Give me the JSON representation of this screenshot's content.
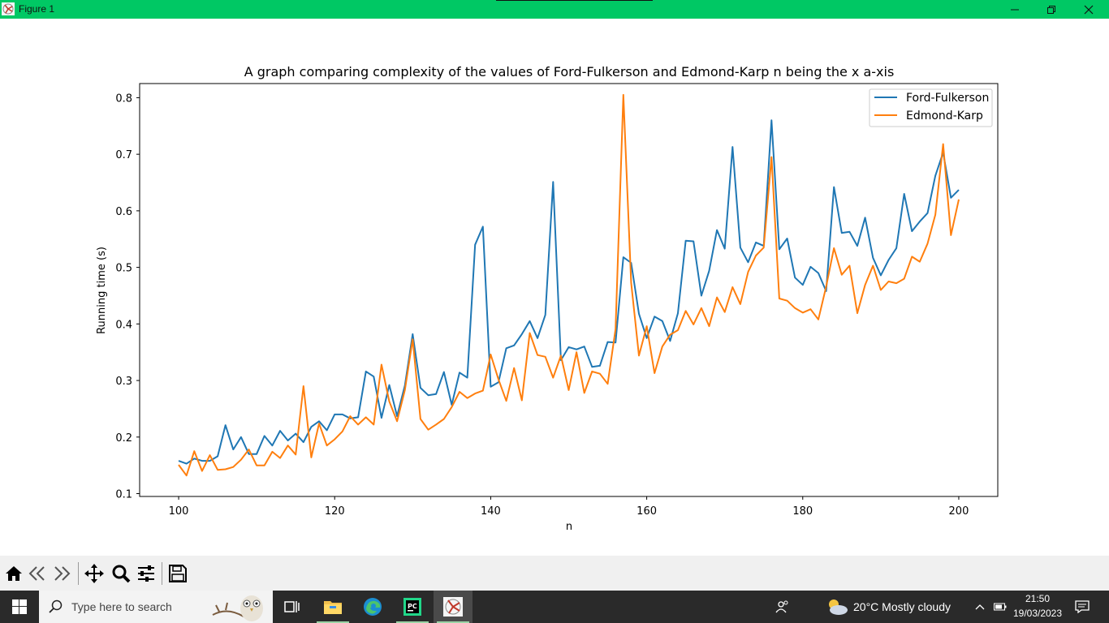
{
  "window": {
    "title": "Figure 1",
    "icon": "matplotlib-figure-icon",
    "accent": "#00c864"
  },
  "window_controls": [
    "minimize-icon",
    "restore-icon",
    "close-icon"
  ],
  "toolbar": {
    "buttons": [
      "home-icon",
      "back-arrow-icon",
      "forward-arrow-icon",
      "pan-move-icon",
      "zoom-magnifier-icon",
      "configure-subplots-icon",
      "save-floppy-icon"
    ]
  },
  "chart_data": {
    "type": "line",
    "title": "A graph comparing complexity of the values of Ford-Fulkerson and Edmond-Karp n being the x a-xis",
    "xlabel": "n",
    "ylabel": "Running time (s)",
    "xlim": [
      95,
      205
    ],
    "ylim": [
      0.095,
      0.825
    ],
    "xticks": [
      100,
      120,
      140,
      160,
      180,
      200
    ],
    "yticks": [
      0.1,
      0.2,
      0.3,
      0.4,
      0.5,
      0.6,
      0.7,
      0.8
    ],
    "grid": false,
    "legend_position": "upper right",
    "x": [
      100,
      101,
      102,
      103,
      104,
      105,
      106,
      107,
      108,
      109,
      110,
      111,
      112,
      113,
      114,
      115,
      116,
      117,
      118,
      119,
      120,
      121,
      122,
      123,
      124,
      125,
      126,
      127,
      128,
      129,
      130,
      131,
      132,
      133,
      134,
      135,
      136,
      137,
      138,
      139,
      140,
      141,
      142,
      143,
      144,
      145,
      146,
      147,
      148,
      149,
      150,
      151,
      152,
      153,
      154,
      155,
      156,
      157,
      158,
      159,
      160,
      161,
      162,
      163,
      164,
      165,
      166,
      167,
      168,
      169,
      170,
      171,
      172,
      173,
      174,
      175,
      176,
      177,
      178,
      179,
      180,
      181,
      182,
      183,
      184,
      185,
      186,
      187,
      188,
      189,
      190,
      191,
      192,
      193,
      194,
      195,
      196,
      197,
      198,
      199,
      200
    ],
    "series": [
      {
        "name": "Ford-Fulkerson",
        "color": "#1f77b4",
        "values": [
          0.158,
          0.153,
          0.162,
          0.158,
          0.158,
          0.166,
          0.221,
          0.178,
          0.2,
          0.17,
          0.17,
          0.202,
          0.185,
          0.211,
          0.194,
          0.206,
          0.191,
          0.218,
          0.228,
          0.212,
          0.24,
          0.24,
          0.233,
          0.235,
          0.316,
          0.307,
          0.234,
          0.292,
          0.237,
          0.291,
          0.382,
          0.287,
          0.274,
          0.276,
          0.315,
          0.257,
          0.314,
          0.305,
          0.54,
          0.572,
          0.289,
          0.297,
          0.357,
          0.362,
          0.382,
          0.405,
          0.375,
          0.416,
          0.651,
          0.336,
          0.359,
          0.355,
          0.36,
          0.324,
          0.326,
          0.368,
          0.367,
          0.518,
          0.508,
          0.418,
          0.375,
          0.413,
          0.405,
          0.37,
          0.419,
          0.547,
          0.546,
          0.45,
          0.494,
          0.566,
          0.533,
          0.713,
          0.535,
          0.509,
          0.544,
          0.538,
          0.76,
          0.532,
          0.551,
          0.482,
          0.469,
          0.501,
          0.49,
          0.458,
          0.642,
          0.561,
          0.563,
          0.538,
          0.588,
          0.517,
          0.486,
          0.513,
          0.534,
          0.63,
          0.564,
          0.581,
          0.596,
          0.662,
          0.703,
          0.623,
          0.637
        ]
      },
      {
        "name": "Edmond-Karp",
        "color": "#ff7f0e",
        "values": [
          0.151,
          0.132,
          0.175,
          0.14,
          0.168,
          0.142,
          0.143,
          0.147,
          0.16,
          0.178,
          0.15,
          0.15,
          0.174,
          0.163,
          0.185,
          0.169,
          0.29,
          0.164,
          0.224,
          0.185,
          0.196,
          0.21,
          0.237,
          0.222,
          0.235,
          0.222,
          0.328,
          0.263,
          0.228,
          0.283,
          0.373,
          0.232,
          0.213,
          0.222,
          0.232,
          0.253,
          0.28,
          0.269,
          0.277,
          0.282,
          0.346,
          0.302,
          0.264,
          0.322,
          0.265,
          0.384,
          0.345,
          0.342,
          0.305,
          0.344,
          0.283,
          0.35,
          0.278,
          0.316,
          0.312,
          0.294,
          0.391,
          0.805,
          0.473,
          0.344,
          0.396,
          0.313,
          0.36,
          0.381,
          0.389,
          0.423,
          0.399,
          0.428,
          0.396,
          0.447,
          0.421,
          0.465,
          0.435,
          0.492,
          0.521,
          0.535,
          0.695,
          0.445,
          0.441,
          0.428,
          0.42,
          0.426,
          0.408,
          0.466,
          0.534,
          0.487,
          0.503,
          0.419,
          0.469,
          0.503,
          0.46,
          0.475,
          0.472,
          0.48,
          0.519,
          0.51,
          0.542,
          0.593,
          0.718,
          0.557,
          0.62
        ]
      }
    ]
  },
  "taskbar": {
    "search_placeholder": "Type here to search",
    "weather": "20°C  Mostly cloudy",
    "time": "21:50",
    "date": "19/03/2023"
  }
}
